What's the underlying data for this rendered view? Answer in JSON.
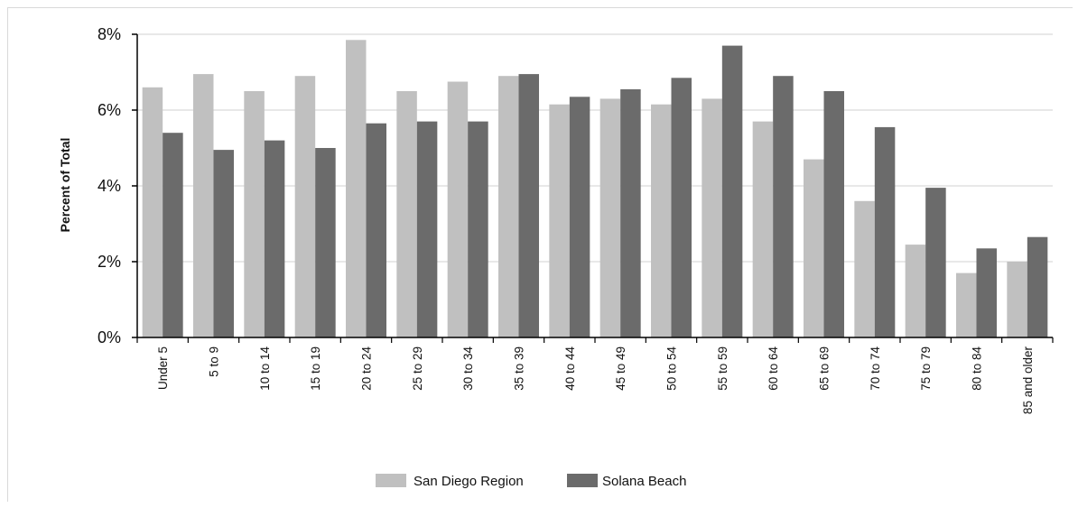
{
  "chart_data": {
    "type": "bar",
    "title": "",
    "xlabel": "",
    "ylabel": "Percent of Total",
    "ylim": [
      0,
      8
    ],
    "yticks": [
      "0%",
      "2%",
      "4%",
      "6%",
      "8%"
    ],
    "yticks_values": [
      0,
      2,
      4,
      6,
      8
    ],
    "grid": true,
    "legend_position": "bottom",
    "categories": [
      "Under 5",
      "5 to 9",
      "10 to 14",
      "15 to 19",
      "20 to 24",
      "25 to 29",
      "30 to 34",
      "35 to 39",
      "40 to 44",
      "45 to 49",
      "50 to 54",
      "55 to 59",
      "60 to 64",
      "65 to 69",
      "70 to 74",
      "75 to 79",
      "80 to 84",
      "85 and older"
    ],
    "series": [
      {
        "name": "San Diego Region",
        "color": "#c0c0c0",
        "values": [
          6.6,
          6.95,
          6.5,
          6.9,
          7.85,
          6.5,
          6.75,
          6.9,
          6.15,
          6.3,
          6.15,
          6.3,
          5.7,
          4.7,
          3.6,
          2.45,
          1.7,
          2.0
        ]
      },
      {
        "name": "Solana Beach",
        "color": "#6b6b6b",
        "values": [
          5.4,
          4.95,
          5.2,
          5.0,
          5.65,
          5.7,
          5.7,
          6.95,
          6.35,
          6.55,
          6.85,
          7.7,
          6.9,
          6.5,
          5.55,
          3.95,
          2.35,
          2.65
        ]
      }
    ]
  }
}
